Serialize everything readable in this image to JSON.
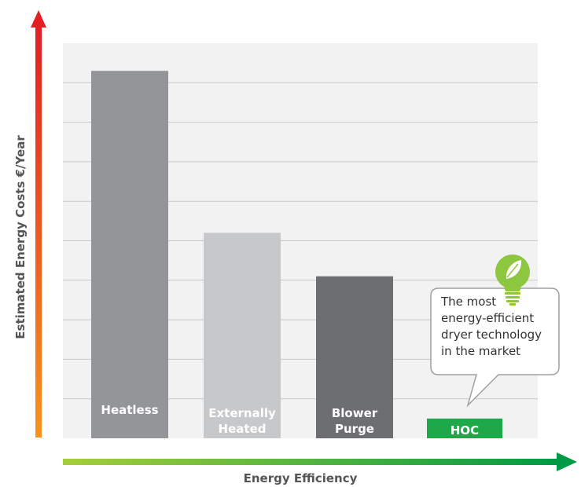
{
  "chart_data": {
    "type": "bar",
    "categories": [
      "Heatless",
      "Externally Heated",
      "Blower Purge",
      "HOC"
    ],
    "category_lines": [
      [
        "Heatless"
      ],
      [
        "Externally",
        "Heated"
      ],
      [
        "Blower",
        "Purge"
      ],
      [
        "HOC"
      ]
    ],
    "values": [
      9.3,
      5.2,
      4.1,
      0.5
    ],
    "ylim": [
      0,
      10
    ],
    "ylabel": "Estimated Energy Costs  €/Year",
    "xlabel": "Energy Efficiency",
    "grid": true,
    "bar_colors": [
      "#939598",
      "#c7c8ca",
      "#6d6e71",
      "#1ea84a"
    ],
    "callout": {
      "lines": [
        "The most",
        "energy-efficient",
        "dryer technology",
        "in the market"
      ],
      "icon": "lightbulb-leaf-icon"
    }
  },
  "colors": {
    "plot_background": "#f2f2f2",
    "gridline": "#c8c8c8",
    "y_arrow_gradient": [
      "#f7941d",
      "#e31e24"
    ],
    "x_arrow_gradient": [
      "#a6ce39",
      "#009a44"
    ],
    "highlight": "#1ea84a"
  }
}
